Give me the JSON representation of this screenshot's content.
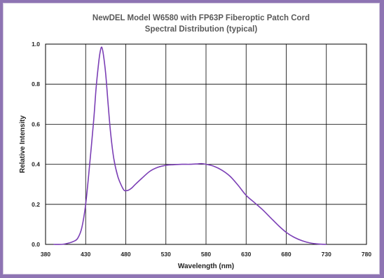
{
  "chart_data": {
    "type": "line",
    "title": "NewDEL Model W6580 with FP63P Fiberoptic Patch Cord",
    "subtitle": "Spectral Distribution (typical)",
    "xlabel": "Wavelength (nm)",
    "ylabel": "Relative Intensity",
    "xlim": [
      380,
      780
    ],
    "ylim": [
      0,
      1.0
    ],
    "x_ticks": [
      "380",
      "430",
      "480",
      "530",
      "580",
      "630",
      "680",
      "730",
      "780"
    ],
    "y_ticks": [
      "0.0",
      "0.2",
      "0.4",
      "0.6",
      "0.8",
      "1.0"
    ],
    "grid": true,
    "series_color": "#7b3fb5",
    "series": [
      {
        "x": [
          390,
          400,
          405,
          410,
          415,
          420,
          425,
          430,
          435,
          440,
          443,
          446,
          448,
          450,
          452,
          455,
          458,
          461,
          465,
          470,
          475,
          478,
          480,
          483,
          487,
          492,
          500,
          510,
          520,
          530,
          540,
          550,
          560,
          570,
          575,
          580,
          590,
          600,
          610,
          620,
          630,
          640,
          650,
          660,
          670,
          680,
          690,
          700,
          710,
          720,
          730
        ],
        "y": [
          0.0,
          0.0,
          0.003,
          0.008,
          0.015,
          0.03,
          0.08,
          0.2,
          0.4,
          0.62,
          0.78,
          0.9,
          0.96,
          0.985,
          0.95,
          0.85,
          0.7,
          0.56,
          0.43,
          0.34,
          0.29,
          0.27,
          0.268,
          0.27,
          0.28,
          0.3,
          0.33,
          0.365,
          0.385,
          0.395,
          0.398,
          0.4,
          0.4,
          0.402,
          0.403,
          0.4,
          0.39,
          0.37,
          0.34,
          0.295,
          0.245,
          0.21,
          0.175,
          0.135,
          0.095,
          0.06,
          0.035,
          0.018,
          0.007,
          0.002,
          0.0
        ]
      }
    ]
  }
}
